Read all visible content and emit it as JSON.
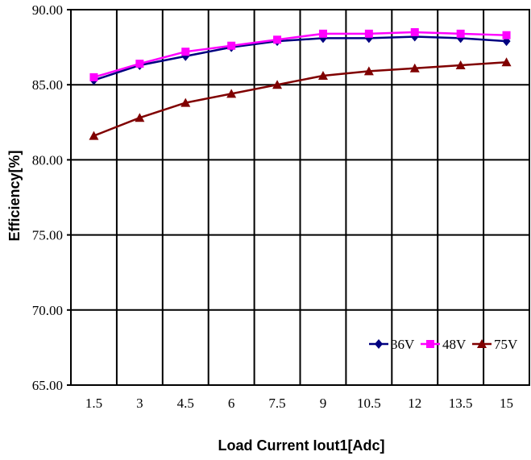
{
  "chart_data": {
    "type": "line",
    "title": "",
    "xlabel": "Load Current Iout1[Adc]",
    "ylabel": "Efficiency[%]",
    "x": [
      1.5,
      3,
      4.5,
      6,
      7.5,
      9,
      10.5,
      12,
      13.5,
      15
    ],
    "x_tick_labels": [
      "1.5",
      "3",
      "4.5",
      "6",
      "7.5",
      "9",
      "10.5",
      "12",
      "13.5",
      "15"
    ],
    "ylim": [
      65,
      90
    ],
    "y_ticks": [
      65,
      70,
      75,
      80,
      85,
      90
    ],
    "y_tick_labels": [
      "65.00",
      "70.00",
      "75.00",
      "80.00",
      "85.00",
      "90.00"
    ],
    "grid": true,
    "legend_position": "bottom-right",
    "series": [
      {
        "name": "36V",
        "color": "#000080",
        "marker": "diamond",
        "values": [
          85.3,
          86.3,
          86.9,
          87.5,
          87.9,
          88.1,
          88.1,
          88.2,
          88.1,
          87.9
        ]
      },
      {
        "name": "48V",
        "color": "#ff00ff",
        "marker": "square",
        "values": [
          85.5,
          86.4,
          87.2,
          87.6,
          88.0,
          88.4,
          88.4,
          88.5,
          88.4,
          88.3
        ]
      },
      {
        "name": "75V",
        "color": "#800000",
        "marker": "triangle",
        "values": [
          81.6,
          82.8,
          83.8,
          84.4,
          85.0,
          85.6,
          85.9,
          86.1,
          86.3,
          86.5
        ]
      }
    ]
  }
}
